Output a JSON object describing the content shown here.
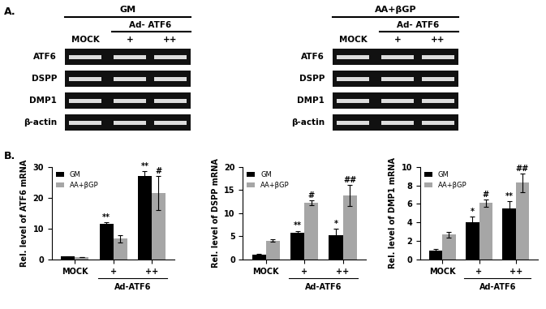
{
  "panel_labels": [
    "A.",
    "B."
  ],
  "gels": [
    {
      "condition": "GM",
      "group_label": "Ad- ATF6",
      "lanes": [
        "MOCK",
        "+",
        "++"
      ],
      "rows": [
        "ATF6",
        "DSPP",
        "DMP1",
        "β-actin"
      ]
    },
    {
      "condition": "AA+βGP",
      "group_label": "Ad- ATF6",
      "lanes": [
        "MOCK",
        "+",
        "++"
      ],
      "rows": [
        "ATF6",
        "DSPP",
        "DMP1",
        "β-actin"
      ]
    }
  ],
  "chart_data": [
    {
      "type": "bar",
      "y_label": "Rel. level of ATF6 mRNA",
      "categories": [
        "MOCK",
        "+",
        "++"
      ],
      "x_group": "Ad-ATF6",
      "ylim": [
        0,
        30
      ],
      "yticks": [
        0,
        10,
        20,
        30
      ],
      "legend": "upper left",
      "series": [
        {
          "name": "GM",
          "color": "#000000",
          "values": [
            1,
            11.5,
            27
          ],
          "errors": [
            0.1,
            0.5,
            1.5
          ],
          "annotations": [
            null,
            "**",
            "**"
          ]
        },
        {
          "name": "AA+βGP",
          "color": "#a6a6a6",
          "values": [
            0.8,
            6.8,
            21.5
          ],
          "errors": [
            0.1,
            1.2,
            5.5
          ],
          "annotations": [
            null,
            null,
            "#"
          ]
        }
      ]
    },
    {
      "type": "bar",
      "y_label": "Rel. level of DSPP mRNA",
      "categories": [
        "MOCK",
        "+",
        "++"
      ],
      "x_group": "Ad-ATF6",
      "ylim": [
        0,
        20
      ],
      "yticks": [
        0,
        5,
        10,
        15,
        20
      ],
      "legend": "upper left",
      "series": [
        {
          "name": "GM",
          "color": "#000000",
          "values": [
            1,
            5.8,
            5.3
          ],
          "errors": [
            0.2,
            0.4,
            1.3
          ],
          "annotations": [
            null,
            "**",
            "*"
          ]
        },
        {
          "name": "AA+βGP",
          "color": "#a6a6a6",
          "values": [
            4.1,
            12.2,
            13.8
          ],
          "errors": [
            0.2,
            0.5,
            2.3
          ],
          "annotations": [
            null,
            "#",
            "##"
          ]
        }
      ]
    },
    {
      "type": "bar",
      "y_label": "Rel. level of DMP1 mRNA",
      "categories": [
        "MOCK",
        "+",
        "++"
      ],
      "x_group": "Ad-ATF6",
      "ylim": [
        0,
        10
      ],
      "yticks": [
        0,
        2,
        4,
        6,
        8,
        10
      ],
      "legend": "upper left",
      "series": [
        {
          "name": "GM",
          "color": "#000000",
          "values": [
            1,
            4,
            5.5
          ],
          "errors": [
            0.1,
            0.6,
            0.8
          ],
          "annotations": [
            null,
            "*",
            "**"
          ]
        },
        {
          "name": "AA+βGP",
          "color": "#a6a6a6",
          "values": [
            2.7,
            6.1,
            8.3
          ],
          "errors": [
            0.3,
            0.4,
            1.0
          ],
          "annotations": [
            null,
            "#",
            "##"
          ]
        }
      ]
    }
  ]
}
